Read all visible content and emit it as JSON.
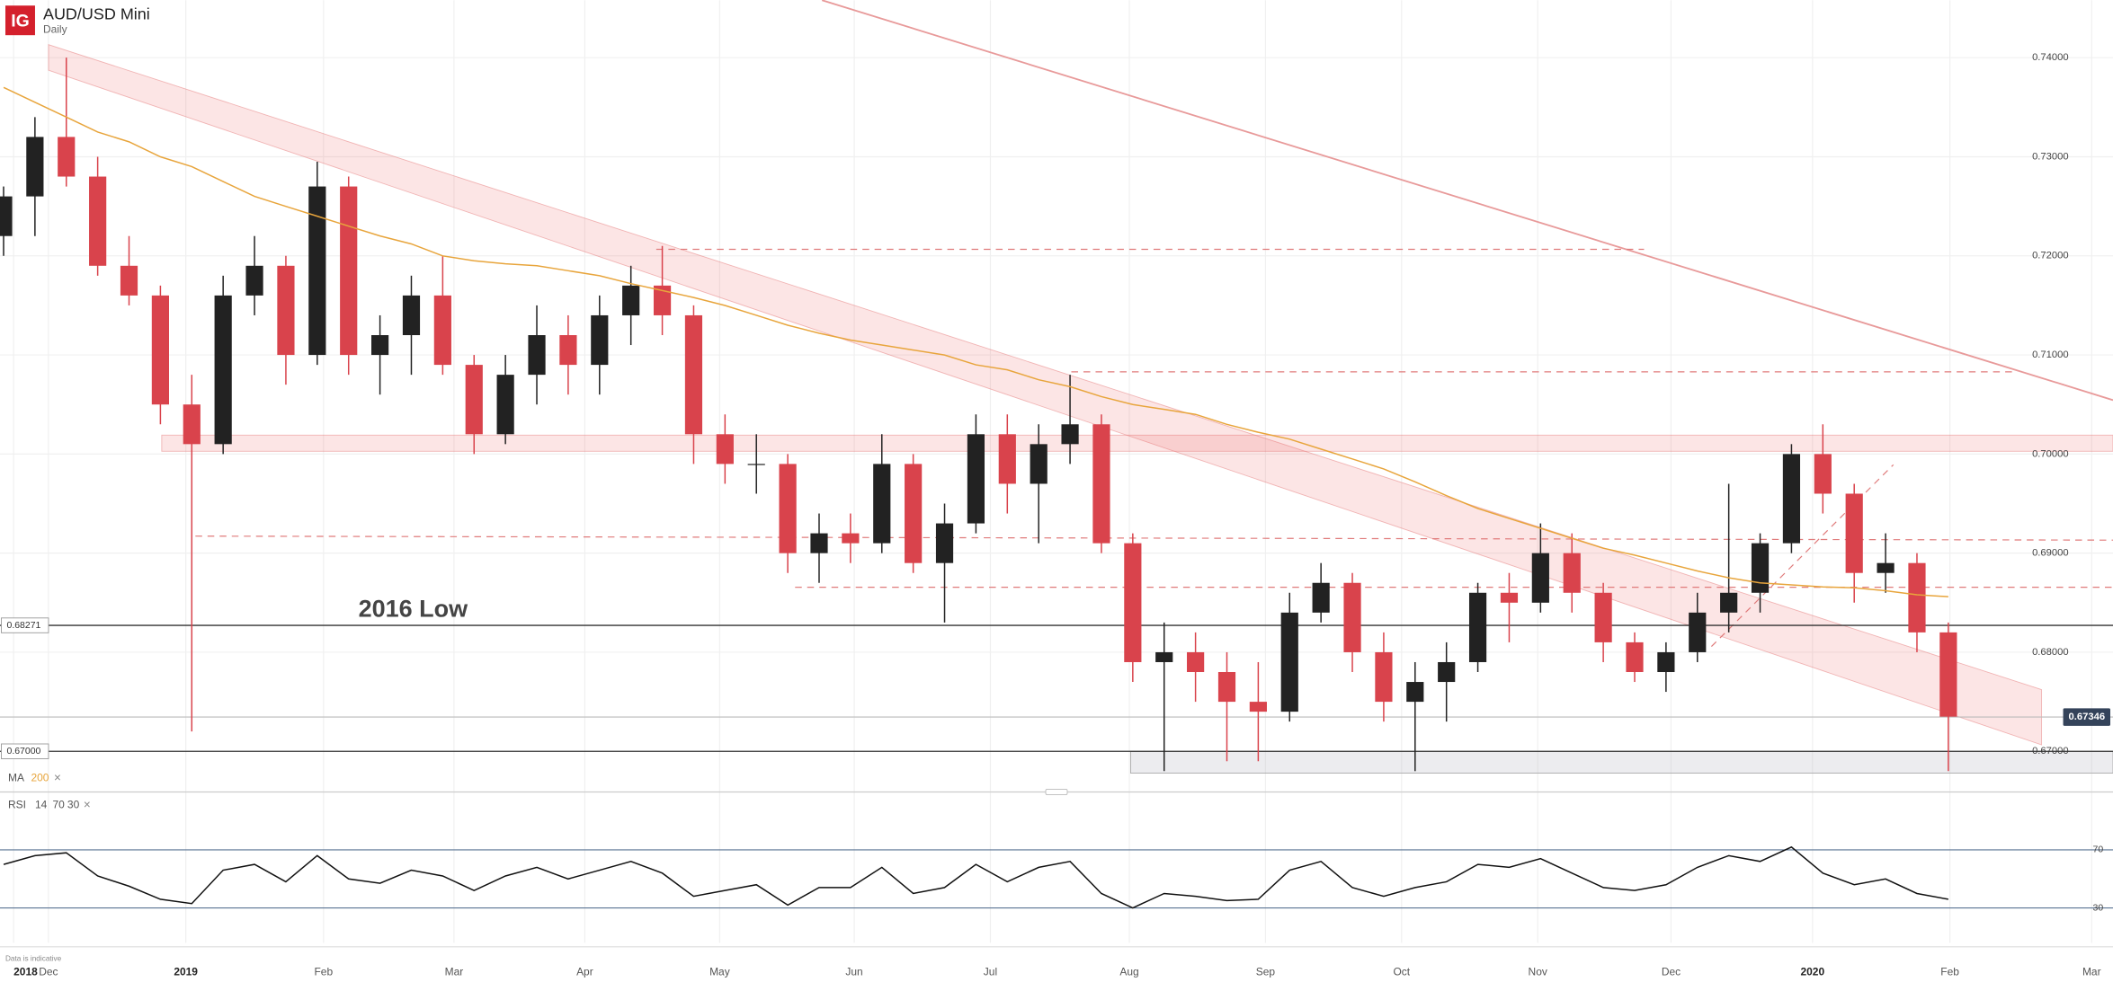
{
  "logo": "IG",
  "chart_data": [
    {
      "type": "candlestick",
      "title": "AUD/USD Mini",
      "subtitle": "Daily",
      "categories": [
        null,
        null,
        null,
        null,
        null,
        null,
        null,
        null,
        null,
        null,
        null,
        null,
        null,
        null,
        null,
        null,
        null,
        null,
        null,
        null,
        null,
        null,
        null,
        null,
        null,
        null,
        null,
        null,
        null,
        null,
        null,
        null,
        null,
        null,
        null,
        null,
        null,
        null,
        null,
        null,
        null,
        null,
        null,
        null,
        null,
        null,
        null,
        null,
        null,
        null,
        null,
        null,
        null,
        null,
        null,
        null,
        null,
        null,
        null,
        null,
        null,
        null,
        null
      ],
      "open": [
        0.722,
        0.726,
        0.732,
        0.728,
        0.719,
        0.716,
        0.705,
        0.701,
        0.716,
        0.719,
        0.71,
        0.727,
        0.71,
        0.712,
        0.716,
        0.709,
        0.702,
        0.708,
        0.712,
        0.709,
        0.714,
        0.717,
        0.714,
        0.702,
        0.699,
        0.699,
        0.69,
        0.692,
        0.691,
        0.699,
        0.689,
        0.693,
        0.702,
        0.697,
        0.701,
        0.703,
        0.691,
        0.679,
        0.68,
        0.678,
        0.675,
        0.674,
        0.684,
        0.687,
        0.68,
        0.675,
        0.677,
        0.679,
        0.686,
        0.685,
        0.69,
        0.686,
        0.681,
        0.678,
        0.68,
        0.684,
        0.686,
        0.691,
        0.7,
        0.696,
        0.688,
        0.689,
        0.682
      ],
      "high": [
        0.727,
        0.734,
        0.74,
        0.73,
        0.722,
        0.717,
        0.708,
        0.718,
        0.722,
        0.72,
        0.7295,
        0.728,
        0.714,
        0.718,
        0.72,
        0.71,
        0.71,
        0.715,
        0.714,
        0.716,
        0.719,
        0.721,
        0.715,
        0.704,
        0.702,
        0.7,
        0.694,
        0.694,
        0.702,
        0.7,
        0.695,
        0.704,
        0.704,
        0.703,
        0.708,
        0.704,
        0.692,
        0.683,
        0.682,
        0.68,
        0.679,
        0.686,
        0.689,
        0.688,
        0.682,
        0.679,
        0.681,
        0.687,
        0.688,
        0.693,
        0.692,
        0.687,
        0.682,
        0.681,
        0.686,
        0.697,
        0.692,
        0.701,
        0.703,
        0.697,
        0.692,
        0.69,
        0.683
      ],
      "low": [
        0.72,
        0.722,
        0.727,
        0.718,
        0.715,
        0.703,
        0.672,
        0.7,
        0.714,
        0.707,
        0.709,
        0.708,
        0.706,
        0.708,
        0.708,
        0.7,
        0.701,
        0.705,
        0.706,
        0.706,
        0.711,
        0.712,
        0.699,
        0.697,
        0.696,
        0.688,
        0.687,
        0.689,
        0.69,
        0.688,
        0.683,
        0.692,
        0.694,
        0.691,
        0.699,
        0.69,
        0.677,
        0.668,
        0.675,
        0.669,
        0.669,
        0.673,
        0.683,
        0.678,
        0.673,
        0.668,
        0.673,
        0.678,
        0.681,
        0.684,
        0.684,
        0.679,
        0.677,
        0.676,
        0.679,
        0.682,
        0.684,
        0.69,
        0.694,
        0.685,
        0.686,
        0.68,
        0.668
      ],
      "close": [
        0.726,
        0.732,
        0.728,
        0.719,
        0.716,
        0.705,
        0.701,
        0.716,
        0.719,
        0.71,
        0.727,
        0.71,
        0.712,
        0.716,
        0.709,
        0.702,
        0.708,
        0.712,
        0.709,
        0.714,
        0.717,
        0.714,
        0.702,
        0.699,
        0.699,
        0.69,
        0.692,
        0.691,
        0.699,
        0.689,
        0.693,
        0.702,
        0.697,
        0.701,
        0.703,
        0.691,
        0.679,
        0.68,
        0.678,
        0.675,
        0.674,
        0.684,
        0.687,
        0.68,
        0.675,
        0.677,
        0.679,
        0.686,
        0.685,
        0.69,
        0.686,
        0.681,
        0.678,
        0.68,
        0.684,
        0.686,
        0.691,
        0.7,
        0.696,
        0.688,
        0.689,
        0.682,
        0.6735
      ],
      "up_color": "#222222",
      "down_color": "#d9434c",
      "ma": {
        "name": "MA",
        "period": 200,
        "color": "#e8a53c",
        "values": [
          0.737,
          0.7355,
          0.734,
          0.7325,
          0.7315,
          0.73,
          0.729,
          0.7275,
          0.726,
          0.725,
          0.724,
          0.723,
          0.722,
          0.7212,
          0.72,
          0.7195,
          0.7192,
          0.719,
          0.7185,
          0.718,
          0.7172,
          0.7165,
          0.7158,
          0.715,
          0.714,
          0.713,
          0.7122,
          0.7115,
          0.711,
          0.7105,
          0.71,
          0.709,
          0.7085,
          0.7075,
          0.7068,
          0.7058,
          0.705,
          0.7045,
          0.704,
          0.703,
          0.7022,
          0.7015,
          0.7005,
          0.6995,
          0.6985,
          0.6972,
          0.6958,
          0.6945,
          0.6935,
          0.6925,
          0.6915,
          0.6905,
          0.6898,
          0.689,
          0.6882,
          0.6875,
          0.687,
          0.6868,
          0.6866,
          0.6865,
          0.6862,
          0.6858,
          0.6856
        ]
      },
      "xlim": [
        -0.114,
        67.25
      ],
      "xticks": [
        {
          "value": 0.32,
          "label": "2018"
        },
        {
          "value": 1.43,
          "label": "Dec"
        },
        {
          "value": 5.81,
          "label": "2019"
        },
        {
          "value": 10.2,
          "label": "Feb"
        },
        {
          "value": 14.36,
          "label": "Mar"
        },
        {
          "value": 18.53,
          "label": "Apr"
        },
        {
          "value": 22.83,
          "label": "May"
        },
        {
          "value": 27.12,
          "label": "Jun"
        },
        {
          "value": 31.46,
          "label": "Jul"
        },
        {
          "value": 35.89,
          "label": "Aug"
        },
        {
          "value": 40.23,
          "label": "Sep"
        },
        {
          "value": 44.57,
          "label": "Oct"
        },
        {
          "value": 48.91,
          "label": "Nov"
        },
        {
          "value": 53.16,
          "label": "Dec"
        },
        {
          "value": 57.67,
          "label": "2020"
        },
        {
          "value": 62.05,
          "label": "Feb"
        },
        {
          "value": 66.57,
          "label": "Mar"
        }
      ],
      "ylim": [
        0.6659,
        0.7458
      ],
      "yticks": [
        {
          "value": 0.67,
          "label": "0.67000"
        },
        {
          "value": 0.68,
          "label": "0.68000"
        },
        {
          "value": 0.69,
          "label": "0.69000"
        },
        {
          "value": 0.7,
          "label": "0.70000"
        },
        {
          "value": 0.71,
          "label": "0.71000"
        },
        {
          "value": 0.72,
          "label": "0.72000"
        },
        {
          "value": 0.73,
          "label": "0.73000"
        },
        {
          "value": 0.74,
          "label": "0.74000"
        }
      ],
      "grid": true,
      "levels": [
        0.68271,
        {
          "value": 0.67,
          "label": "0.67000"
        }
      ],
      "last_price": 0.67346,
      "annotation": "2016 Low",
      "note": "Data is indicative"
    },
    {
      "type": "line",
      "title": "RSI",
      "params": [
        14,
        70,
        30
      ],
      "color": "#111111",
      "values": [
        60,
        66,
        68,
        52,
        45,
        36,
        33,
        56,
        60,
        48,
        66,
        50,
        47,
        56,
        52,
        42,
        52,
        58,
        50,
        56,
        62,
        54,
        38,
        42,
        46,
        32,
        44,
        44,
        58,
        40,
        44,
        60,
        48,
        58,
        62,
        40,
        30,
        40,
        38,
        35,
        36,
        56,
        62,
        44,
        38,
        44,
        48,
        60,
        58,
        64,
        54,
        44,
        42,
        46,
        58,
        66,
        62,
        72,
        54,
        46,
        50,
        40,
        36
      ],
      "ylim": [
        6,
        96
      ],
      "yticks": [
        30,
        70
      ]
    }
  ]
}
